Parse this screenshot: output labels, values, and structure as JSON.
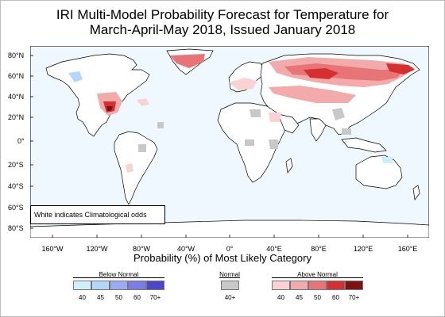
{
  "title": {
    "line1": "IRI Multi-Model Probability Forecast for Temperature for",
    "line2": "March-April-May 2018, Issued January 2018"
  },
  "map": {
    "ocean_color": "#eef8fe",
    "land_color": "#ffffff",
    "lat_labels": [
      "80°N",
      "60°N",
      "40°N",
      "20°N",
      "0°",
      "20°S",
      "40°S",
      "60°S",
      "80°S"
    ],
    "lon_labels": [
      "160°W",
      "120°W",
      "80°W",
      "40°W",
      "0°",
      "40°E",
      "80°E",
      "120°E",
      "160°E"
    ],
    "note": "White indicates Climatological odds"
  },
  "axis_title": "Probability (%) of Most Likely Category",
  "legend": {
    "below": {
      "title": "Below Normal",
      "labels": [
        "40",
        "45",
        "50",
        "60",
        "70+"
      ],
      "colors": [
        "#cdeffc",
        "#b3d7fa",
        "#9aaaf3",
        "#7a7de6",
        "#4b47c9"
      ]
    },
    "normal": {
      "title": "Normal",
      "labels": [
        "40+"
      ],
      "colors": [
        "#c8c8c8"
      ]
    },
    "above": {
      "title": "Above Normal",
      "labels": [
        "40",
        "45",
        "50",
        "60",
        "70+"
      ],
      "colors": [
        "#f9d3d3",
        "#f2aaaa",
        "#e77577",
        "#d62f31",
        "#7d1212"
      ]
    }
  }
}
